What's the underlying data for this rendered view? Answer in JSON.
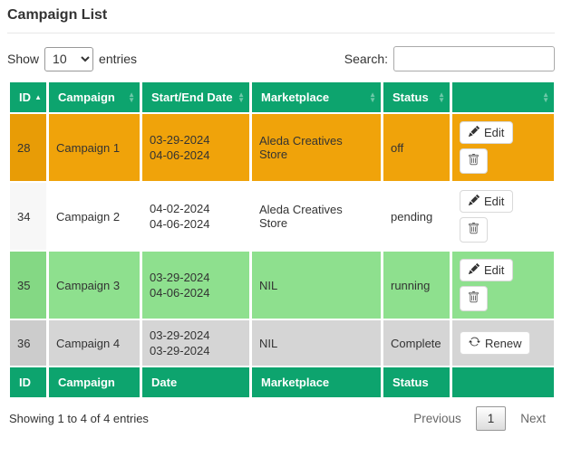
{
  "page": {
    "title": "Campaign List"
  },
  "controls": {
    "show_label_before": "Show",
    "show_selected": "10",
    "show_label_after": "entries",
    "search_label": "Search:"
  },
  "table": {
    "header_columns": [
      {
        "label": "ID",
        "sort": "asc"
      },
      {
        "label": "Campaign",
        "sort": "none"
      },
      {
        "label": "Start/End Date",
        "sort": "none"
      },
      {
        "label": "Marketplace",
        "sort": "none"
      },
      {
        "label": "Status",
        "sort": "none"
      },
      {
        "label": "",
        "sort": "none"
      }
    ],
    "footer_columns": [
      "ID",
      "Campaign",
      "Date",
      "Marketplace",
      "Status",
      ""
    ],
    "rows": [
      {
        "id": "28",
        "campaign": "Campaign 1",
        "date_start": "03-29-2024",
        "date_end": "04-06-2024",
        "marketplace": "Aleda Creatives Store",
        "status": "off",
        "row_color": "#f0a30a",
        "sorted_cell_color": "#e89c06",
        "actions": [
          {
            "type": "edit",
            "label": "Edit"
          },
          {
            "type": "delete",
            "label": ""
          }
        ]
      },
      {
        "id": "34",
        "campaign": "Campaign 2",
        "date_start": "04-02-2024",
        "date_end": "04-06-2024",
        "marketplace": "Aleda Creatives Store",
        "status": "pending",
        "row_color": "#ffffff",
        "sorted_cell_color": "#f7f7f7",
        "actions": [
          {
            "type": "edit",
            "label": "Edit"
          },
          {
            "type": "delete",
            "label": ""
          }
        ]
      },
      {
        "id": "35",
        "campaign": "Campaign 3",
        "date_start": "03-29-2024",
        "date_end": "04-06-2024",
        "marketplace": "NIL",
        "status": "running",
        "row_color": "#8ee08e",
        "sorted_cell_color": "#84d884",
        "actions": [
          {
            "type": "edit",
            "label": "Edit"
          },
          {
            "type": "delete",
            "label": ""
          }
        ]
      },
      {
        "id": "36",
        "campaign": "Campaign 4",
        "date_start": "03-29-2024",
        "date_end": "03-29-2024",
        "marketplace": "NIL",
        "status": "Complete",
        "row_color": "#d5d5d5",
        "sorted_cell_color": "#cccccc",
        "actions": [
          {
            "type": "renew",
            "label": "Renew"
          }
        ]
      }
    ],
    "icons": {
      "edit": "pencil-icon",
      "delete": "trash-icon",
      "renew": "refresh-icon"
    }
  },
  "footer": {
    "info": "Showing 1 to 4 of 4 entries",
    "pagination": {
      "previous": "Previous",
      "page": "1",
      "next": "Next"
    }
  },
  "colors": {
    "header_green": "#0da46e",
    "status_off_orange": "#f0a30a",
    "status_running_green": "#8ee08e",
    "status_complete_gray": "#d5d5d5"
  }
}
